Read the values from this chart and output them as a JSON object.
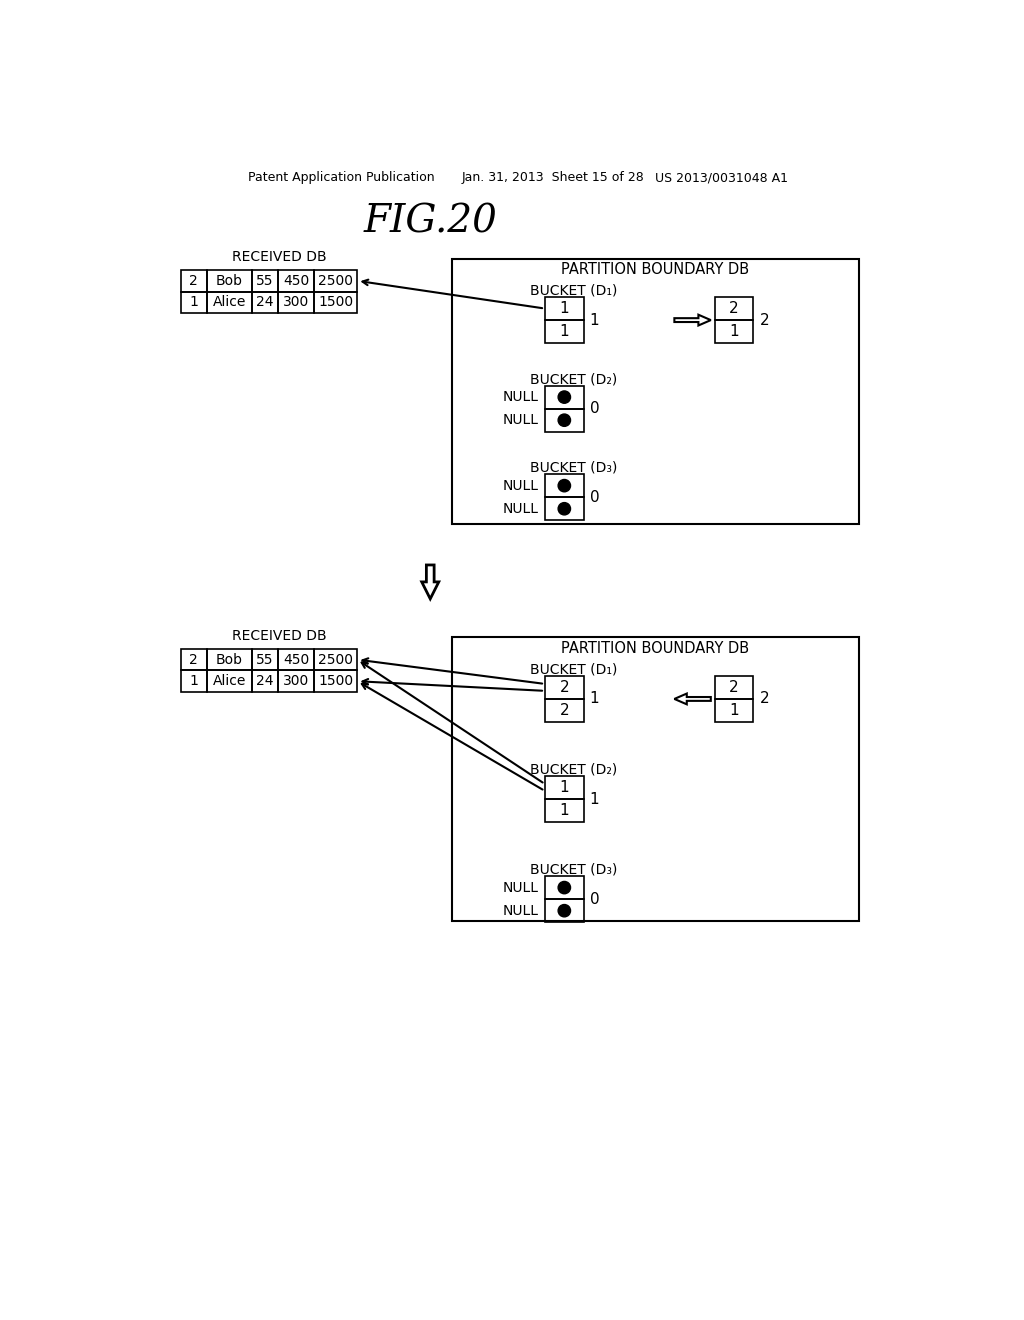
{
  "title": "FIG.20",
  "header_left": "Patent Application Publication",
  "header_mid": "Jan. 31, 2013  Sheet 15 of 28",
  "header_right": "US 2013/0031048 A1",
  "bg_color": "#ffffff",
  "text_color": "#000000",
  "top": {
    "received_db_label": "RECEIVED DB",
    "rows": [
      [
        "2",
        "Bob",
        "55",
        "450",
        "2500"
      ],
      [
        "1",
        "Alice",
        "24",
        "300",
        "1500"
      ]
    ],
    "pb_label": "PARTITION BOUNDARY DB",
    "b1_label": "BUCKET (D₁)",
    "b1_vals": [
      "1",
      "1"
    ],
    "b1_side": "1",
    "b1r_vals": [
      "2",
      "1"
    ],
    "b1r_side": "2",
    "b1_arrow": "right",
    "b2_label": "BUCKET (D₂)",
    "b2_vals": [
      "NULL",
      "NULL"
    ],
    "b2_side": "0",
    "b2_dots": true,
    "b3_label": "BUCKET (D₃)",
    "b3_vals": [
      "NULL",
      "NULL"
    ],
    "b3_side": "0",
    "b3_dots": true
  },
  "bottom": {
    "received_db_label": "RECEIVED DB",
    "rows": [
      [
        "2",
        "Bob",
        "55",
        "450",
        "2500"
      ],
      [
        "1",
        "Alice",
        "24",
        "300",
        "1500"
      ]
    ],
    "pb_label": "PARTITION BOUNDARY DB",
    "b1_label": "BUCKET (D₁)",
    "b1_vals": [
      "2",
      "2"
    ],
    "b1_side": "1",
    "b1r_vals": [
      "2",
      "1"
    ],
    "b1r_side": "2",
    "b1_arrow": "left",
    "b2_label": "BUCKET (D₂)",
    "b2_vals": [
      "1",
      "1"
    ],
    "b2_side": "1",
    "b2_dots": false,
    "b3_label": "BUCKET (D₃)",
    "b3_vals": [
      "NULL",
      "NULL"
    ],
    "b3_side": "0",
    "b3_dots": true
  }
}
